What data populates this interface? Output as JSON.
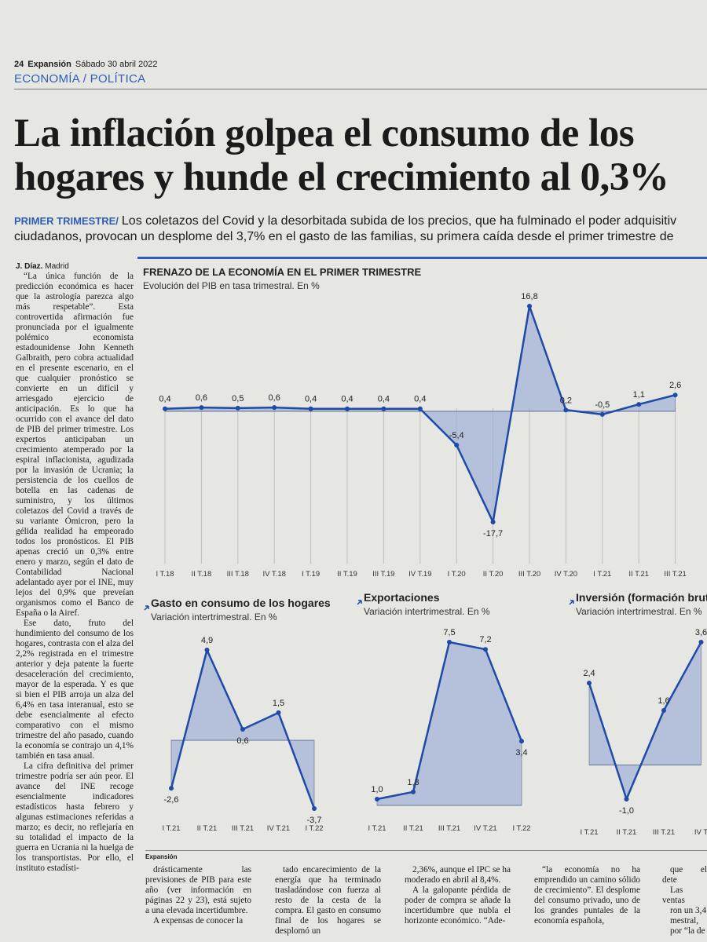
{
  "header": {
    "page": "24",
    "paper": "Expansión",
    "date": "Sábado 30 abril 2022",
    "section": "ECONOMÍA / POLÍTICA"
  },
  "headline": [
    "La inflación golpea el consumo de los",
    "hogares y hunde el crecimiento al 0,3%"
  ],
  "lede": {
    "tag": "PRIMER TRIMESTRE/",
    "lines": [
      "Los coletazos del Covid y la desorbitada subida de los precios, que ha fulminado el poder adquisitiv",
      "ciudadanos, provocan un desplome del 3,7% en el gasto de las familias, su primera caída desde el primer trimestre de"
    ]
  },
  "byline": {
    "author": "J. Díaz.",
    "place": "Madrid"
  },
  "body": [
    "“La única función de la predicción económica es hacer que la astrología parezca algo más respetable”. Esta controvertida afirmación fue pronunciada por el igualmente polémico economista estadounidense John Kenneth Galbraith, pero cobra actualidad en el presente escenario, en el que cualquier pronóstico se convierte en un difícil y arriesgado ejercicio de anticipación. Es lo que ha ocurrido con el avance del dato de PIB del primer trimestre. Los expertos anticipaban un crecimiento atemperado por la espiral inflacionista, agudizada por la invasión de Ucrania; la persistencia de los cuellos de botella en las cadenas de suministro, y los últimos coletazos del Covid a través de su variante Ómicron, pero la gélida realidad ha empeorado todos los pronósticos. El PIB apenas creció un 0,3% entre enero y marzo, según el dato de Contabilidad Nacional adelantado ayer por el INE, muy lejos del 0,9% que preveían organismos como el Banco de España o la Airef.",
    "Ese dato, fruto del hundimiento del consumo de los hogares, contrasta con el alza del 2,2% registrada en el trimestre anterior y deja patente la fuerte desaceleración del crecimiento, mayor de la esperada. Y es que si bien el PIB arroja un alza del 6,4% en tasa interanual, esto se debe esencialmente al efecto comparativo con el mismo trimestre del año pasado, cuando la economía se contrajo un 4,1% también en tasa anual.",
    "La cifra definitiva del primer trimestre podría ser aún peor. El avance del INE recoge esencialmente indicadores estadísticos hasta febrero y algunas estimaciones referidas a marzo; es decir, no reflejaría en su totalidad el impacto de la guerra en Ucrania ni la huelga de los transportistas. Por ello, el instituto estadísti-"
  ],
  "charts": [
    {
      "type": "area",
      "title": "FRENAZO DE LA ECONOMÍA EN EL PRIMER TRIMESTRE",
      "subtitle": "Evolución del PIB en tasa trimestral. En %",
      "color": "#1f4aa8",
      "categories": [
        "I T.18",
        "II T.18",
        "III T.18",
        "IV T.18",
        "I T.19",
        "II T.19",
        "III T.19",
        "IV T.19",
        "I T.20",
        "II T.20",
        "III T.20",
        "IV T.20",
        "I T.21",
        "II T.21",
        "III T.21"
      ],
      "values": [
        0.4,
        0.6,
        0.5,
        0.6,
        0.4,
        0.4,
        0.4,
        0.4,
        -5.4,
        -17.7,
        16.8,
        0.2,
        -0.5,
        1.1,
        2.6
      ],
      "value_labels": [
        "0,4",
        "0,6",
        "0,5",
        "0,6",
        "0,4",
        "0,4",
        "0,4",
        "0,4",
        "-5,4",
        "-17,7",
        "16,8",
        "0,2",
        "-0,5",
        "1,1",
        "2,6"
      ]
    },
    {
      "type": "area",
      "title": "Gasto en consumo de los hogares",
      "subtitle": "Variación intertrimestral. En %",
      "color": "#1f4aa8",
      "categories": [
        "I T.21",
        "II T.21",
        "III T.21",
        "IV T.21",
        "I T.22"
      ],
      "values": [
        -2.6,
        4.9,
        0.6,
        1.5,
        -3.7
      ],
      "value_labels": [
        "-2,6",
        "4,9",
        "0,6",
        "1,5",
        "-3,7"
      ]
    },
    {
      "type": "area",
      "title": "Exportaciones",
      "subtitle": "Variación intertrimestral. En %",
      "color": "#1f4aa8",
      "categories": [
        "I T.21",
        "II T.21",
        "III T.21",
        "IV T.21",
        "I T.22"
      ],
      "values": [
        1.0,
        1.3,
        7.5,
        7.2,
        3.4
      ],
      "value_labels": [
        "1,0",
        "1,3",
        "7,5",
        "7,2",
        "3,4"
      ]
    },
    {
      "type": "area",
      "title": "Inversión (formación bruta",
      "subtitle": "Variación intertrimestral. En %",
      "color": "#1f4aa8",
      "categories": [
        "I T.21",
        "II T.21",
        "III T.21",
        "IV T"
      ],
      "values": [
        2.4,
        -1.0,
        1.6,
        3.6
      ],
      "value_labels": [
        "2,4",
        "-1,0",
        "1,6",
        "3,6"
      ]
    }
  ],
  "credit": "Expansión",
  "bottom_columns": [
    [
      "drásticamente las previsiones de PIB para este año (ver información en páginas 22 y 23), está sujeto a una elevada incertidumbre.",
      "A expensas de conocer la"
    ],
    [
      "tado encarecimiento de la energía que ha terminado trasladándose con fuerza al resto de la cesta de la compra. El gasto en consumo final de los hogares se desplomó un"
    ],
    [
      "2,36%, aunque el IPC se ha moderado en abril al 8,4%.",
      "A la galopante pérdida de poder de compra se añade la incertidumbre que nubla el horizonte económico. “Ade-"
    ],
    [
      "“la economía no ha emprendido un camino sólido de crecimiento”. El desplome del consumo privado, uno de los grandes puntales de la economía española,"
    ],
    [
      "que el dete",
      "Las ventas",
      "ron un 3,4",
      "mestral,",
      "por “la de"
    ]
  ]
}
